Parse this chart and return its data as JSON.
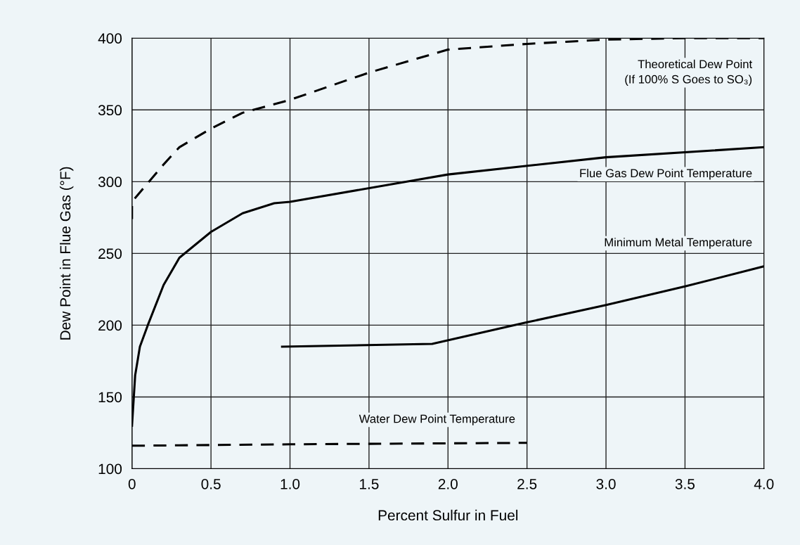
{
  "chart_data": {
    "type": "line",
    "xlabel": "Percent Sulfur in Fuel",
    "ylabel": "Dew Point in Flue Gas (°F)",
    "xlim": [
      0,
      4
    ],
    "ylim": [
      100,
      400
    ],
    "xticks": [
      0,
      0.5,
      {
        "value": 1,
        "label": "1.0"
      },
      1.5,
      {
        "value": 2,
        "label": "2.0"
      },
      2.5,
      {
        "value": 3,
        "label": "3.0"
      },
      3.5,
      {
        "value": 4,
        "label": "4.0"
      }
    ],
    "yticks": [
      100,
      150,
      200,
      250,
      300,
      350,
      400
    ],
    "grid": true,
    "marker": "none",
    "series": [
      {
        "name": "Theoretical Dew Point\n(If 100% S Goes to SO₃)",
        "color": "#000000",
        "line_style": "dashed",
        "x": [
          0,
          0,
          0.1,
          0.2,
          0.3,
          0.5,
          0.7,
          1.0,
          1.5,
          2.0,
          2.5,
          3.0,
          3.5,
          4.0
        ],
        "values": [
          274,
          286,
          299,
          312,
          324,
          337,
          348,
          357,
          376,
          392,
          396,
          399,
          400,
          400
        ]
      },
      {
        "name": "Flue Gas Dew Point Temperature",
        "color": "#000000",
        "line_style": "solid",
        "x": [
          0,
          0.02,
          0.05,
          0.1,
          0.2,
          0.3,
          0.5,
          0.7,
          0.9,
          1.0,
          2.0,
          3.0,
          4.0
        ],
        "values": [
          130,
          165,
          185,
          200,
          228,
          247,
          265,
          278,
          285,
          286,
          305,
          317,
          324
        ]
      },
      {
        "name": "Minimum Metal Temperature",
        "color": "#000000",
        "line_style": "solid",
        "x": [
          0.95,
          1.9,
          2.5,
          3.0,
          3.5,
          4.0
        ],
        "values": [
          185,
          187,
          202,
          214,
          227,
          241
        ]
      },
      {
        "name": "Water Dew Point Temperature",
        "color": "#000000",
        "line_style": "dashed",
        "x": [
          0,
          1.0,
          2.5
        ],
        "values": [
          116,
          117,
          118
        ]
      }
    ]
  }
}
